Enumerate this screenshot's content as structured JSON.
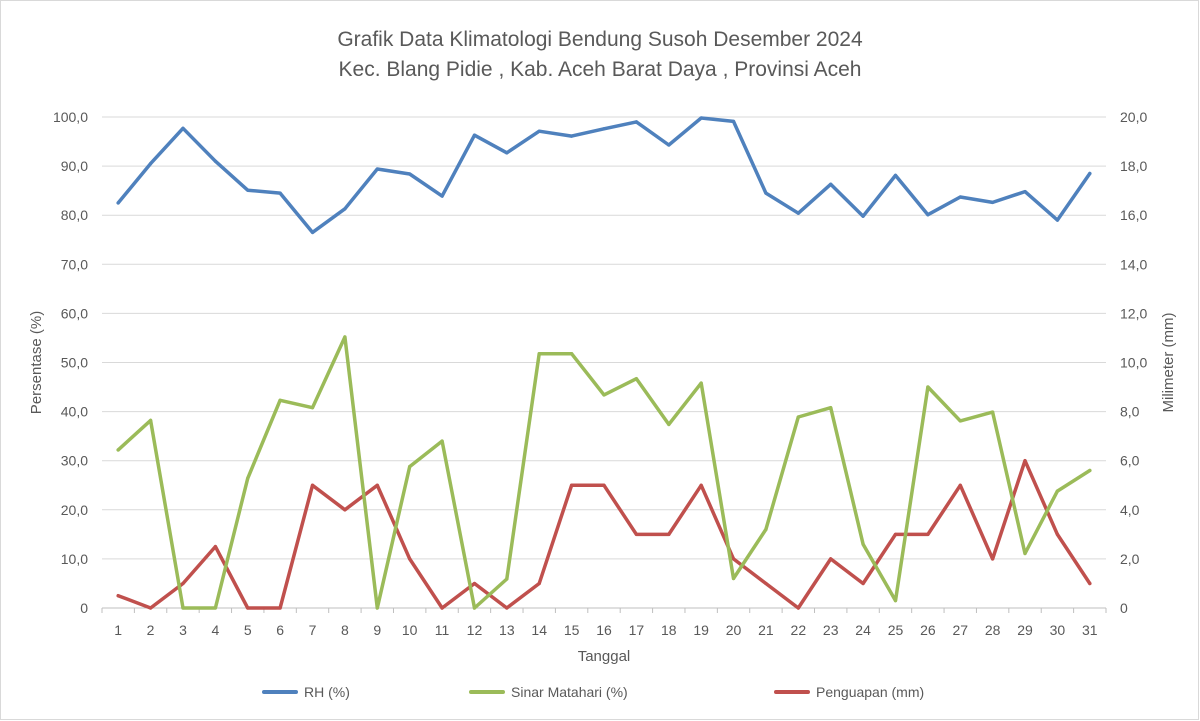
{
  "chart_data": {
    "type": "line",
    "title": "Grafik Data Klimatologi Bendung Susoh Desember 2024",
    "subtitle": "Kec. Blang Pidie , Kab. Aceh Barat Daya  , Provinsi  Aceh",
    "xlabel": "Tanggal",
    "ylabel_left": "Persentase (%)",
    "ylabel_right": "Milimeter (mm)",
    "ylim_left": [
      0,
      100
    ],
    "ylim_right": [
      0,
      20
    ],
    "left_ticks": [
      "0",
      "10,0",
      "20,0",
      "30,0",
      "40,0",
      "50,0",
      "60,0",
      "70,0",
      "80,0",
      "90,0",
      "100,0"
    ],
    "right_ticks": [
      "0",
      "2,0",
      "4,0",
      "6,0",
      "8,0",
      "10,0",
      "12,0",
      "14,0",
      "16,0",
      "18,0",
      "20,0"
    ],
    "categories": [
      "1",
      "2",
      "3",
      "4",
      "5",
      "6",
      "7",
      "8",
      "9",
      "10",
      "11",
      "12",
      "13",
      "14",
      "15",
      "16",
      "17",
      "18",
      "19",
      "20",
      "21",
      "22",
      "23",
      "24",
      "25",
      "26",
      "27",
      "28",
      "29",
      "30",
      "31"
    ],
    "grid": true,
    "legend_position": "bottom",
    "series": [
      {
        "name": "RH (%)",
        "axis": "left",
        "color": "#4f81bd",
        "values": [
          82.5,
          90.5,
          97.7,
          91.0,
          85.1,
          84.5,
          76.5,
          81.3,
          89.4,
          88.4,
          83.9,
          96.3,
          92.7,
          97.1,
          96.1,
          97.6,
          99.0,
          94.3,
          99.8,
          99.1,
          84.5,
          80.4,
          86.3,
          79.8,
          88.1,
          80.1,
          83.7,
          82.6,
          84.8,
          79.0,
          88.5
        ]
      },
      {
        "name": "Sinar Matahari (%)",
        "axis": "left",
        "color": "#9bbb59",
        "values": [
          32.2,
          38.2,
          0.0,
          0.0,
          26.4,
          42.3,
          40.8,
          55.2,
          0.0,
          28.8,
          34.0,
          0.0,
          5.9,
          51.8,
          51.8,
          43.4,
          46.7,
          37.4,
          45.8,
          6.0,
          16.0,
          38.9,
          40.8,
          13.0,
          1.5,
          45.0,
          38.1,
          39.9,
          11.1,
          23.8,
          28.0
        ]
      },
      {
        "name": "Penguapan (mm)",
        "axis": "right",
        "color": "#c0504d",
        "values": [
          0.5,
          0.0,
          1.0,
          2.5,
          0.0,
          0.0,
          5.0,
          4.0,
          5.0,
          2.0,
          0.0,
          1.0,
          0.0,
          1.0,
          5.0,
          5.0,
          3.0,
          3.0,
          5.0,
          2.0,
          1.0,
          0.0,
          2.0,
          1.0,
          3.0,
          3.0,
          5.0,
          2.0,
          6.0,
          3.0,
          1.0
        ]
      }
    ]
  }
}
